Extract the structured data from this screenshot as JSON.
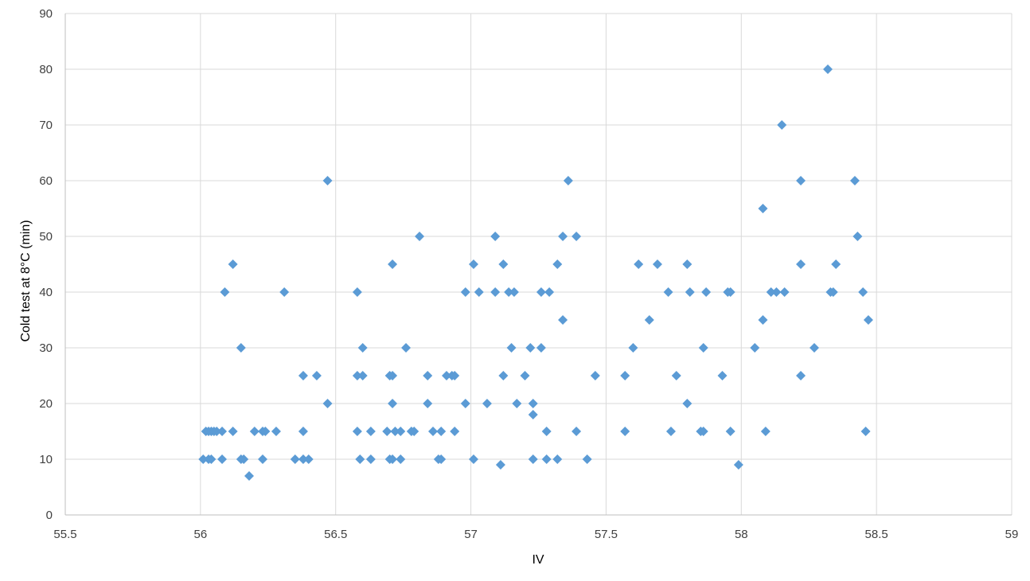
{
  "chart_data": {
    "type": "scatter",
    "title": "",
    "xlabel": "IV",
    "ylabel": "Cold test at 8°C (min)",
    "xlim": [
      55.5,
      59
    ],
    "ylim": [
      0,
      90
    ],
    "x_ticks": [
      "55.5",
      "56",
      "56.5",
      "57",
      "57.5",
      "58",
      "58.5",
      "59"
    ],
    "y_ticks": [
      "0",
      "10",
      "20",
      "30",
      "40",
      "50",
      "60",
      "70",
      "80",
      "90"
    ],
    "grid": true,
    "legend": "none",
    "marker": "diamond",
    "series": [
      {
        "color": "#5b9bd5",
        "points": [
          [
            56.01,
            10
          ],
          [
            56.02,
            15
          ],
          [
            56.03,
            15
          ],
          [
            56.03,
            10
          ],
          [
            56.04,
            15
          ],
          [
            56.04,
            10
          ],
          [
            56.05,
            15
          ],
          [
            56.06,
            15
          ],
          [
            56.08,
            15
          ],
          [
            56.08,
            10
          ],
          [
            56.09,
            40
          ],
          [
            56.12,
            45
          ],
          [
            56.12,
            15
          ],
          [
            56.15,
            30
          ],
          [
            56.15,
            10
          ],
          [
            56.16,
            10
          ],
          [
            56.18,
            7
          ],
          [
            56.2,
            15
          ],
          [
            56.23,
            15
          ],
          [
            56.23,
            10
          ],
          [
            56.24,
            15
          ],
          [
            56.28,
            15
          ],
          [
            56.31,
            40
          ],
          [
            56.35,
            10
          ],
          [
            56.38,
            25
          ],
          [
            56.38,
            15
          ],
          [
            56.38,
            10
          ],
          [
            56.4,
            10
          ],
          [
            56.43,
            25
          ],
          [
            56.47,
            60
          ],
          [
            56.47,
            20
          ],
          [
            56.58,
            40
          ],
          [
            56.58,
            25
          ],
          [
            56.58,
            15
          ],
          [
            56.59,
            10
          ],
          [
            56.6,
            30
          ],
          [
            56.6,
            25
          ],
          [
            56.63,
            15
          ],
          [
            56.63,
            10
          ],
          [
            56.69,
            15
          ],
          [
            56.7,
            25
          ],
          [
            56.7,
            10
          ],
          [
            56.71,
            45
          ],
          [
            56.71,
            25
          ],
          [
            56.71,
            20
          ],
          [
            56.71,
            10
          ],
          [
            56.72,
            15
          ],
          [
            56.74,
            15
          ],
          [
            56.74,
            10
          ],
          [
            56.76,
            30
          ],
          [
            56.78,
            15
          ],
          [
            56.79,
            15
          ],
          [
            56.81,
            50
          ],
          [
            56.84,
            25
          ],
          [
            56.84,
            20
          ],
          [
            56.86,
            15
          ],
          [
            56.88,
            10
          ],
          [
            56.89,
            15
          ],
          [
            56.89,
            10
          ],
          [
            56.91,
            25
          ],
          [
            56.93,
            25
          ],
          [
            56.94,
            25
          ],
          [
            56.94,
            15
          ],
          [
            56.98,
            40
          ],
          [
            56.98,
            20
          ],
          [
            57.01,
            45
          ],
          [
            57.01,
            10
          ],
          [
            57.03,
            40
          ],
          [
            57.06,
            20
          ],
          [
            57.09,
            50
          ],
          [
            57.09,
            40
          ],
          [
            57.11,
            9
          ],
          [
            57.12,
            45
          ],
          [
            57.12,
            25
          ],
          [
            57.14,
            40
          ],
          [
            57.15,
            30
          ],
          [
            57.16,
            40
          ],
          [
            57.17,
            20
          ],
          [
            57.2,
            25
          ],
          [
            57.22,
            30
          ],
          [
            57.23,
            20
          ],
          [
            57.23,
            18
          ],
          [
            57.23,
            10
          ],
          [
            57.26,
            40
          ],
          [
            57.26,
            30
          ],
          [
            57.28,
            15
          ],
          [
            57.28,
            10
          ],
          [
            57.29,
            40
          ],
          [
            57.32,
            45
          ],
          [
            57.32,
            10
          ],
          [
            57.34,
            50
          ],
          [
            57.34,
            35
          ],
          [
            57.36,
            60
          ],
          [
            57.39,
            50
          ],
          [
            57.39,
            15
          ],
          [
            57.43,
            10
          ],
          [
            57.46,
            25
          ],
          [
            57.57,
            25
          ],
          [
            57.57,
            15
          ],
          [
            57.6,
            30
          ],
          [
            57.62,
            45
          ],
          [
            57.66,
            35
          ],
          [
            57.69,
            45
          ],
          [
            57.73,
            40
          ],
          [
            57.74,
            15
          ],
          [
            57.76,
            25
          ],
          [
            57.8,
            45
          ],
          [
            57.8,
            20
          ],
          [
            57.81,
            40
          ],
          [
            57.85,
            15
          ],
          [
            57.86,
            30
          ],
          [
            57.86,
            15
          ],
          [
            57.87,
            40
          ],
          [
            57.93,
            25
          ],
          [
            57.95,
            40
          ],
          [
            57.96,
            40
          ],
          [
            57.96,
            15
          ],
          [
            57.99,
            9
          ],
          [
            58.05,
            30
          ],
          [
            58.08,
            55
          ],
          [
            58.08,
            35
          ],
          [
            58.09,
            15
          ],
          [
            58.11,
            40
          ],
          [
            58.13,
            40
          ],
          [
            58.15,
            70
          ],
          [
            58.16,
            40
          ],
          [
            58.22,
            60
          ],
          [
            58.22,
            45
          ],
          [
            58.22,
            25
          ],
          [
            58.27,
            30
          ],
          [
            58.32,
            80
          ],
          [
            58.33,
            40
          ],
          [
            58.34,
            40
          ],
          [
            58.35,
            45
          ],
          [
            58.42,
            60
          ],
          [
            58.43,
            50
          ],
          [
            58.45,
            40
          ],
          [
            58.46,
            15
          ],
          [
            58.47,
            35
          ]
        ]
      }
    ]
  }
}
